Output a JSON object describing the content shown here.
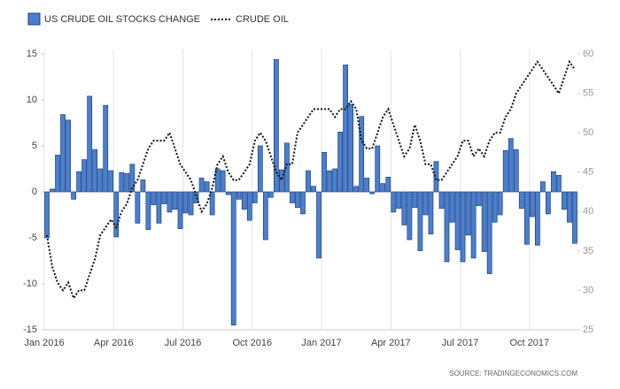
{
  "chart_data": {
    "type": "bar-line",
    "categories": [
      "Jan 2016",
      null,
      null,
      null,
      null,
      null,
      null,
      null,
      null,
      null,
      null,
      null,
      null,
      "Apr 2016",
      null,
      null,
      null,
      null,
      null,
      null,
      null,
      null,
      null,
      null,
      null,
      null,
      "Jul 2016",
      null,
      null,
      null,
      null,
      null,
      null,
      null,
      null,
      null,
      null,
      null,
      null,
      "Oct 2016",
      null,
      null,
      null,
      null,
      null,
      null,
      null,
      null,
      null,
      null,
      null,
      null,
      "Jan 2017",
      null,
      null,
      null,
      null,
      null,
      null,
      null,
      null,
      null,
      null,
      null,
      null,
      "Apr 2017",
      null,
      null,
      null,
      null,
      null,
      null,
      null,
      null,
      null,
      null,
      null,
      null,
      "Jul 2017",
      null,
      null,
      null,
      null,
      null,
      null,
      null,
      null,
      null,
      null,
      null,
      null,
      "Oct 2017",
      null,
      null,
      null,
      null,
      null,
      null,
      null,
      null
    ],
    "series": [
      {
        "name": "US CRUDE OIL STOCKS CHANGE",
        "type": "bar",
        "color": "#4a7fd0",
        "values": [
          -5,
          0.3,
          4,
          8.4,
          7.8,
          -0.8,
          2.2,
          3.5,
          10.4,
          4.6,
          2.5,
          9.4,
          2.3,
          -4.9,
          2.1,
          2,
          3,
          -3.4,
          1.3,
          -4.1,
          -1.4,
          -3.4,
          -1.3,
          -2.2,
          -1.9,
          -4,
          -2.3,
          -2.5,
          -1.2,
          1.5,
          1.1,
          -2.5,
          2.5,
          2.3,
          -0.3,
          -14.5,
          -0.8,
          -1.9,
          -3.1,
          -1.2,
          5,
          -5.2,
          -0.6,
          14.4,
          2.4,
          5.3,
          -1.2,
          -1.7,
          -2.4,
          2.3,
          0.6,
          -7.2,
          4.3,
          2.3,
          2.5,
          6.5,
          13.8,
          9.5,
          0.6,
          8.2,
          1.5,
          -0.2,
          5,
          0.9,
          1.6,
          -2.2,
          -1.8,
          -3.6,
          -5.2,
          -1.7,
          -6.4,
          -2.5,
          -4.6,
          3.3,
          -1.8,
          -7.6,
          -3.3,
          -6.3,
          -7.6,
          -4.7,
          -7.2,
          -1.5,
          -6.5,
          -8.9,
          -3.3,
          -2.5,
          4.5,
          5.8,
          4.6,
          -1.8,
          -5.7,
          -2.7,
          -5.8,
          1.1,
          -2.4,
          2.2,
          1.8,
          -1.9,
          -3.3,
          -5.6
        ]
      },
      {
        "name": "CRUDE OIL",
        "type": "line",
        "axis": "y2",
        "color": "#111111",
        "values": [
          37,
          33,
          31,
          30,
          31,
          29,
          30,
          30,
          32,
          34,
          37,
          38,
          39,
          38,
          40,
          41,
          43,
          44,
          46,
          48,
          49,
          49,
          49,
          50,
          48,
          46,
          45,
          44,
          42,
          40,
          41,
          43,
          46,
          47,
          45,
          44,
          44,
          45,
          46,
          49,
          50,
          49,
          47,
          45,
          44,
          46,
          46,
          50,
          51,
          52,
          53,
          53,
          53,
          53,
          52,
          53,
          53,
          54,
          53,
          49,
          48,
          48,
          50,
          52,
          53,
          51,
          49,
          47,
          48,
          51,
          49,
          46,
          46,
          44,
          44,
          45,
          46,
          47,
          49,
          49,
          47,
          48,
          47,
          49,
          50,
          50,
          52,
          53,
          55,
          56,
          57,
          58,
          59,
          58,
          57,
          56,
          55,
          57,
          59,
          58
        ]
      }
    ],
    "ylim": [
      -15,
      15
    ],
    "yticks": [
      -15,
      -10,
      -5,
      0,
      5,
      10,
      15
    ],
    "y2lim": [
      25,
      60
    ],
    "y2ticks": [
      25,
      30,
      35,
      40,
      45,
      50,
      55,
      60
    ],
    "grid": "x",
    "source": "SOURCE: TRADINGECONOMICS.COM"
  }
}
